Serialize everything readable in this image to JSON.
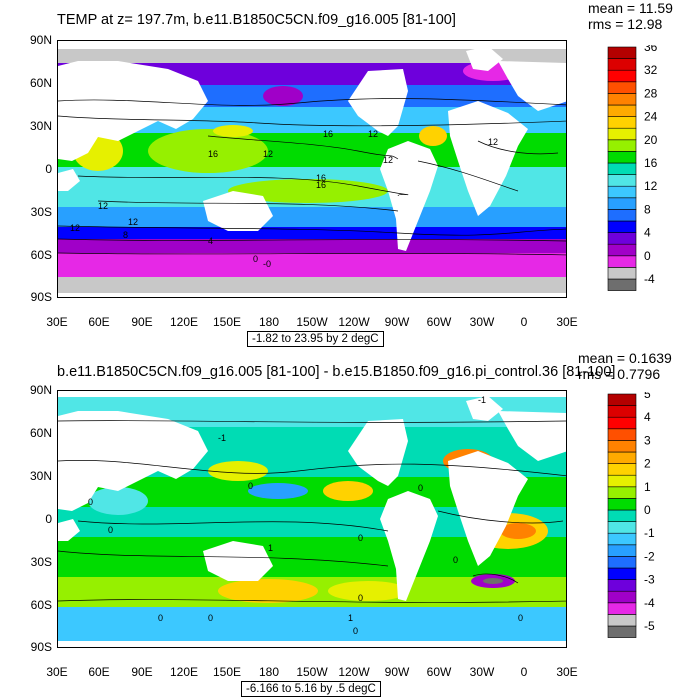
{
  "panels": [
    {
      "title": "TEMP at z= 197.7m, b.e11.B1850C5CN.f09_g16.005 [81-100]",
      "mean": "mean = 11.59",
      "rms": "rms = 12.98",
      "range": "-1.82 to 23.95 by 2 degC",
      "colorbar_labels": [
        "36",
        "32",
        "28",
        "24",
        "20",
        "16",
        "12",
        "8",
        "4",
        "0",
        "-4"
      ],
      "contour_labels": [
        "16",
        "12",
        "12",
        "16",
        "12",
        "16",
        "16",
        "12",
        "12",
        "12",
        "8",
        "4",
        "0",
        "12",
        "-0"
      ],
      "palette": [
        "#6e6e6e",
        "#c8c8c8",
        "#e628e6",
        "#a000c8",
        "#6e00dc",
        "#0000ff",
        "#1e6eff",
        "#28a0ff",
        "#3cc8ff",
        "#50e6e6",
        "#00dcb4",
        "#00dc00",
        "#96f000",
        "#e6f000",
        "#ffd200",
        "#ffaa00",
        "#ff8200",
        "#ff5000",
        "#ff0000",
        "#dc0000",
        "#b40000"
      ]
    },
    {
      "title": "b.e11.B1850C5CN.f09_g16.005 [81-100] - b.e15.B1850.f09_g16.pi_control.36 [81-100]",
      "mean": "mean = 0.1639",
      "rms": "rms = 0.7796",
      "range": "-6.166 to 5.16 by .5 degC",
      "colorbar_labels": [
        "5",
        "4",
        "3",
        "2",
        "1",
        "0",
        "-1",
        "-2",
        "-3",
        "-4",
        "-5"
      ],
      "contour_labels": [
        "-1",
        "0",
        "0",
        "0",
        "1",
        "-1",
        "0",
        "0",
        "0",
        "0",
        "1",
        "0",
        "0",
        "0",
        "0"
      ],
      "palette": [
        "#6e6e6e",
        "#c8c8c8",
        "#e628e6",
        "#a000c8",
        "#6e00dc",
        "#0000ff",
        "#1e6eff",
        "#28a0ff",
        "#3cc8ff",
        "#50e6e6",
        "#00dcb4",
        "#00dc00",
        "#96f000",
        "#e6f000",
        "#ffd200",
        "#ffaa00",
        "#ff8200",
        "#ff5000",
        "#ff0000",
        "#dc0000",
        "#b40000"
      ]
    }
  ],
  "axes": {
    "lat_labels": [
      "90N",
      "60N",
      "30N",
      "0",
      "30S",
      "60S",
      "90S"
    ],
    "lon_labels": [
      "30E",
      "60E",
      "90E",
      "120E",
      "150E",
      "180",
      "150W",
      "120W",
      "90W",
      "60W",
      "30W",
      "0",
      "30E"
    ]
  }
}
